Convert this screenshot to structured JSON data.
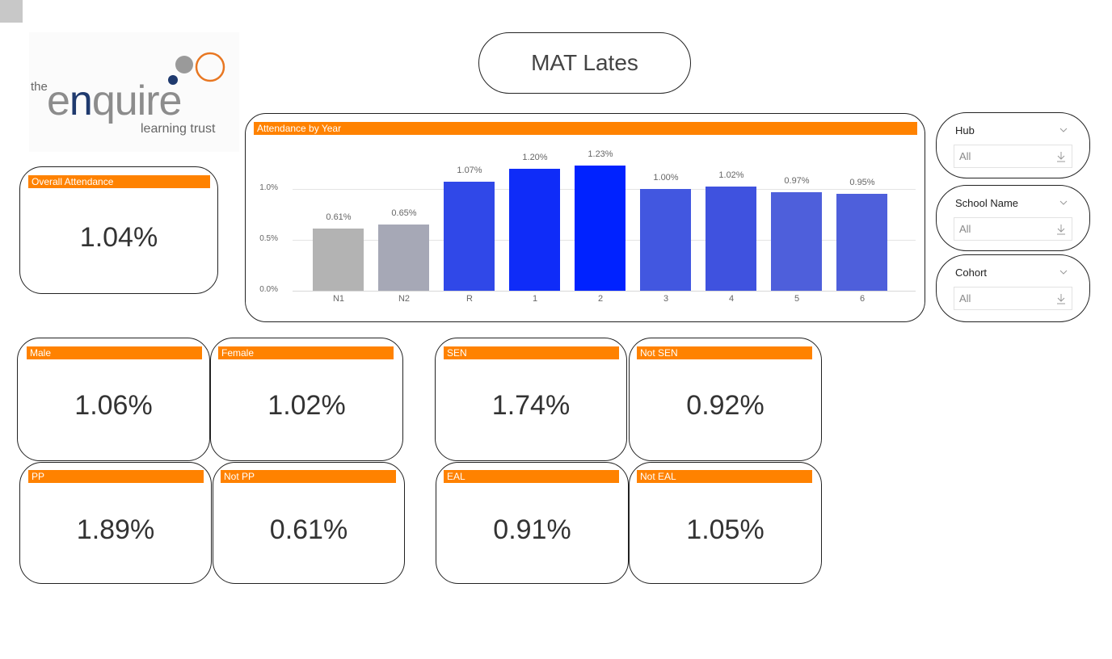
{
  "page": {
    "title": "MAT Lates"
  },
  "logo": {
    "small_text": "the",
    "main_text": "enquire",
    "sub_text": "learning trust",
    "colors": {
      "grey": "#8c8c8c",
      "navy": "#1f3a6e",
      "orange": "#e87722"
    }
  },
  "theme": {
    "header_orange": "#ff8200",
    "border": "#222222",
    "value_text": "#333333"
  },
  "overall": {
    "label": "Overall Attendance",
    "value": "1.04%"
  },
  "chart_data": {
    "type": "bar",
    "title": "Attendance by Year",
    "categories": [
      "N1",
      "N2",
      "R",
      "1",
      "2",
      "3",
      "4",
      "5",
      "6"
    ],
    "values": [
      0.61,
      0.65,
      1.07,
      1.2,
      1.23,
      1.0,
      1.02,
      0.97,
      0.95
    ],
    "value_labels": [
      "0.61%",
      "0.65%",
      "1.07%",
      "1.20%",
      "1.23%",
      "1.00%",
      "1.02%",
      "0.97%",
      "0.95%"
    ],
    "colors": [
      "#b3b3b3",
      "#a6a8b6",
      "#3048e8",
      "#0f2cf8",
      "#0022ff",
      "#4257e0",
      "#3f52df",
      "#4e5fdb",
      "#4e5fdb"
    ],
    "xlabel": "",
    "ylabel": "",
    "yticks": [
      "0.0%",
      "0.5%",
      "1.0%"
    ],
    "ylim": [
      0,
      1.35
    ],
    "grid": true,
    "legend": "none"
  },
  "slicers": [
    {
      "label": "Hub",
      "value": "All"
    },
    {
      "label": "School Name",
      "value": "All"
    },
    {
      "label": "Cohort",
      "value": "All"
    }
  ],
  "cards": [
    {
      "label": "Male",
      "value": "1.06%"
    },
    {
      "label": "Female",
      "value": "1.02%"
    },
    {
      "label": "SEN",
      "value": "1.74%"
    },
    {
      "label": "Not SEN",
      "value": "0.92%"
    },
    {
      "label": "PP",
      "value": "1.89%"
    },
    {
      "label": "Not PP",
      "value": "0.61%"
    },
    {
      "label": "EAL",
      "value": "0.91%"
    },
    {
      "label": "Not EAL",
      "value": "1.05%"
    }
  ]
}
